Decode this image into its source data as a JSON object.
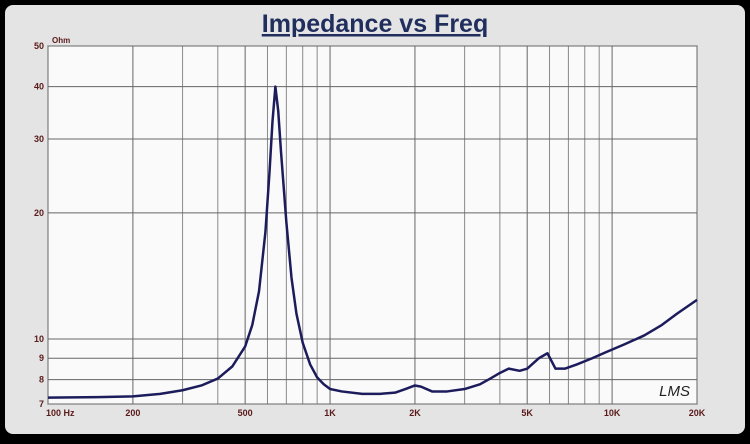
{
  "chart_data": {
    "type": "line",
    "title": "Impedance vs Freq",
    "ylabel": "Ohm",
    "watermark": "LMS",
    "xscale": "log",
    "yscale": "log",
    "grid": true,
    "color": "#1c1c5c",
    "x": [
      100,
      150,
      200,
      250,
      300,
      350,
      400,
      450,
      500,
      530,
      560,
      590,
      610,
      625,
      640,
      655,
      670,
      700,
      730,
      760,
      800,
      850,
      900,
      950,
      1000,
      1100,
      1300,
      1500,
      1700,
      1850,
      2000,
      2100,
      2300,
      2600,
      3000,
      3400,
      3700,
      4000,
      4300,
      4700,
      5000,
      5500,
      5900,
      6300,
      6800,
      7500,
      8500,
      9500,
      11000,
      13000,
      15000,
      17000,
      20000
    ],
    "values": [
      7.25,
      7.27,
      7.3,
      7.4,
      7.55,
      7.75,
      8.05,
      8.6,
      9.6,
      10.8,
      13,
      18,
      25,
      33,
      40,
      35,
      28,
      19,
      14,
      11.5,
      9.8,
      8.7,
      8.1,
      7.8,
      7.6,
      7.5,
      7.4,
      7.4,
      7.45,
      7.6,
      7.75,
      7.7,
      7.5,
      7.5,
      7.6,
      7.8,
      8.05,
      8.3,
      8.5,
      8.4,
      8.5,
      9.0,
      9.25,
      8.5,
      8.5,
      8.7,
      9.0,
      9.3,
      9.7,
      10.2,
      10.8,
      11.5,
      12.4
    ],
    "xlim": [
      100,
      20000
    ],
    "xticks": [
      {
        "value": 100,
        "label": "100 Hz"
      },
      200,
      500,
      {
        "value": 1000,
        "label": "1K"
      },
      {
        "value": 2000,
        "label": "2K"
      },
      {
        "value": 5000,
        "label": "5K"
      },
      {
        "value": 10000,
        "label": "10K"
      },
      {
        "value": 20000,
        "label": "20K"
      }
    ],
    "xminor_ticks": [
      300,
      400,
      600,
      700,
      800,
      900,
      3000,
      4000,
      6000,
      7000,
      8000,
      9000
    ],
    "ylim": [
      7,
      50
    ],
    "yticks": [
      7,
      8,
      9,
      10,
      20,
      30,
      40,
      50
    ]
  }
}
